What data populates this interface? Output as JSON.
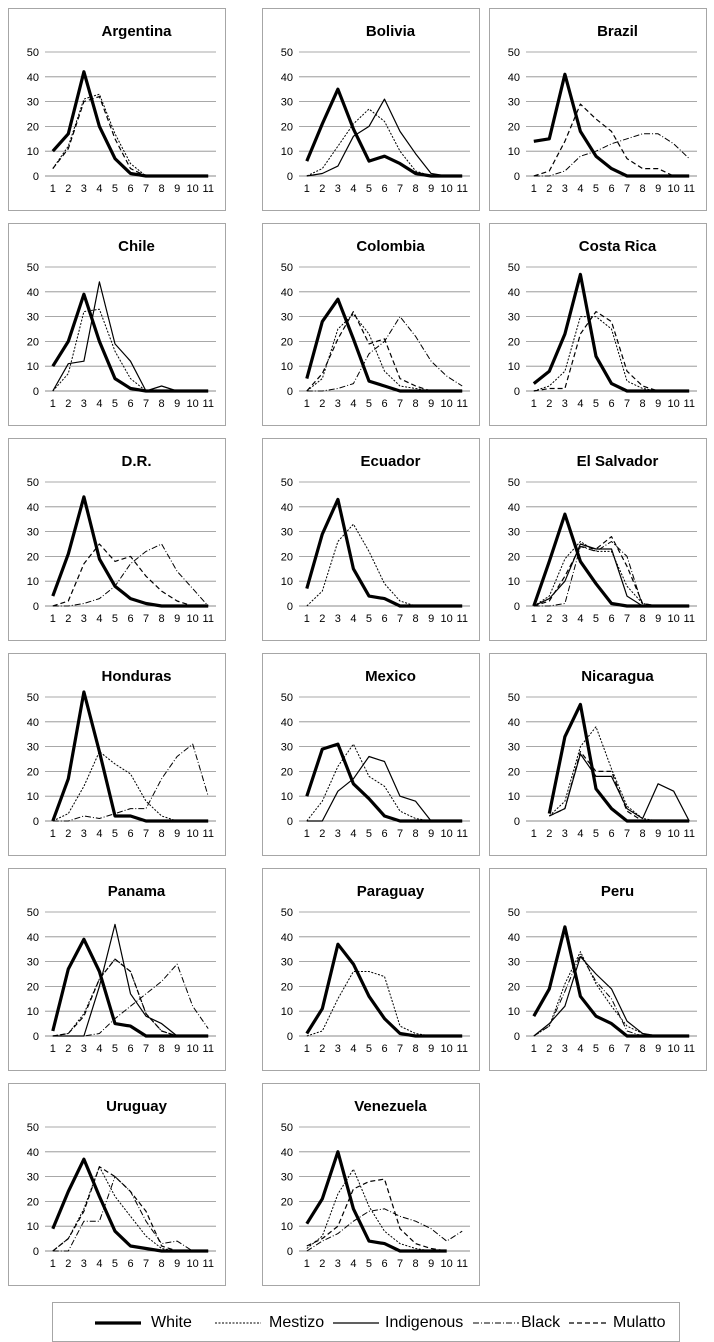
{
  "chart_data": {
    "type": "line",
    "x": [
      1,
      2,
      3,
      4,
      5,
      6,
      7,
      8,
      9,
      10,
      11
    ],
    "ylim": [
      0,
      50
    ],
    "yticks": [
      0,
      10,
      20,
      30,
      40,
      50
    ],
    "grid": true,
    "legend_position": "bottom",
    "legend": [
      {
        "name": "White",
        "style": "thick"
      },
      {
        "name": "Mestizo",
        "style": "dotted"
      },
      {
        "name": "Indigenous",
        "style": "solid"
      },
      {
        "name": "Black",
        "style": "dashdot"
      },
      {
        "name": "Mulatto",
        "style": "dashed"
      }
    ],
    "panels": [
      {
        "title": "Argentina",
        "series": [
          {
            "name": "White",
            "values": [
              10,
              17,
              42,
              20,
              7,
              1,
              0,
              0,
              0,
              0,
              0
            ]
          },
          {
            "name": "Mestizo",
            "values": [
              3,
              12,
              31,
              33,
              17,
              5,
              0,
              0,
              0,
              0,
              0
            ]
          },
          {
            "name": "Mulatto",
            "values": [
              3,
              11,
              30,
              32,
              15,
              3,
              0,
              0,
              0,
              0,
              0
            ]
          }
        ]
      },
      {
        "title": "Bolivia",
        "series": [
          {
            "name": "White",
            "values": [
              6,
              21,
              35,
              19,
              6,
              8,
              5,
              1,
              0,
              0,
              0
            ]
          },
          {
            "name": "Mestizo",
            "values": [
              0,
              3,
              12,
              21,
              27,
              22,
              10,
              2,
              0,
              0,
              0
            ]
          },
          {
            "name": "Indigenous",
            "values": [
              0,
              1,
              4,
              16,
              20,
              31,
              18,
              9,
              1,
              0,
              0
            ]
          }
        ]
      },
      {
        "title": "Brazil",
        "series": [
          {
            "name": "White",
            "values": [
              14,
              15,
              41,
              18,
              8,
              3,
              0,
              0,
              0,
              0,
              0
            ]
          },
          {
            "name": "Black",
            "values": [
              0,
              0,
              2,
              8,
              10,
              13,
              15,
              17,
              17,
              13,
              7
            ]
          },
          {
            "name": "Mulatto",
            "values": [
              0,
              2,
              14,
              29,
              23,
              18,
              7,
              3,
              3,
              0,
              0
            ]
          }
        ]
      },
      {
        "title": "Chile",
        "series": [
          {
            "name": "White",
            "values": [
              10,
              20,
              39,
              20,
              5,
              1,
              0,
              0,
              0,
              0,
              0
            ]
          },
          {
            "name": "Mestizo",
            "values": [
              0,
              7,
              32,
              33,
              16,
              5,
              0,
              0,
              0,
              0,
              0
            ]
          },
          {
            "name": "Indigenous",
            "values": [
              0,
              11,
              12,
              44,
              19,
              12,
              0,
              2,
              0,
              0,
              0
            ]
          }
        ]
      },
      {
        "title": "Colombia",
        "series": [
          {
            "name": "White",
            "values": [
              5,
              28,
              37,
              21,
              4,
              2,
              0,
              0,
              0,
              0,
              0
            ]
          },
          {
            "name": "Mestizo",
            "values": [
              0,
              5,
              25,
              31,
              23,
              8,
              2,
              1,
              0,
              0,
              0
            ]
          },
          {
            "name": "Black",
            "values": [
              0,
              0,
              1,
              3,
              15,
              20,
              30,
              22,
              12,
              6,
              2
            ]
          },
          {
            "name": "Mulatto",
            "values": [
              0,
              7,
              21,
              32,
              19,
              21,
              5,
              2,
              0,
              0,
              0
            ]
          }
        ]
      },
      {
        "title": "Costa Rica",
        "series": [
          {
            "name": "White",
            "values": [
              3,
              8,
              23,
              47,
              14,
              3,
              0,
              0,
              0,
              0,
              0
            ]
          },
          {
            "name": "Mestizo",
            "values": [
              0,
              2,
              8,
              30,
              30,
              25,
              4,
              1,
              0,
              0,
              0
            ]
          },
          {
            "name": "Mulatto",
            "values": [
              0,
              1,
              1,
              23,
              32,
              28,
              8,
              2,
              0,
              0,
              0
            ]
          }
        ]
      },
      {
        "title": "D.R.",
        "series": [
          {
            "name": "White",
            "values": [
              4,
              21,
              44,
              19,
              8,
              3,
              1,
              0,
              0,
              0,
              0
            ]
          },
          {
            "name": "Black",
            "values": [
              0,
              0,
              1,
              3,
              8,
              17,
              22,
              25,
              14,
              7,
              0
            ]
          },
          {
            "name": "Mulatto",
            "values": [
              0,
              2,
              17,
              25,
              18,
              20,
              12,
              6,
              2,
              0,
              0
            ]
          }
        ]
      },
      {
        "title": "Ecuador",
        "series": [
          {
            "name": "White",
            "values": [
              7,
              29,
              43,
              15,
              4,
              3,
              0,
              0,
              0,
              0,
              0
            ]
          },
          {
            "name": "Mestizo",
            "values": [
              0,
              6,
              26,
              33,
              22,
              9,
              2,
              0,
              0,
              0,
              0
            ]
          }
        ]
      },
      {
        "title": "El Salvador",
        "series": [
          {
            "name": "White",
            "values": [
              0,
              18,
              37,
              18,
              9,
              1,
              0,
              0,
              0,
              0,
              0
            ]
          },
          {
            "name": "Mestizo",
            "values": [
              0,
              4,
              19,
              26,
              22,
              22,
              8,
              1,
              0,
              0,
              0
            ]
          },
          {
            "name": "Indigenous",
            "values": [
              0,
              3,
              10,
              25,
              23,
              23,
              4,
              0,
              0,
              0,
              0
            ]
          },
          {
            "name": "Black",
            "values": [
              0,
              0,
              1,
              24,
              22,
              26,
              20,
              0,
              0,
              0,
              0
            ]
          },
          {
            "name": "Mulatto",
            "values": [
              0,
              2,
              12,
              24,
              23,
              28,
              16,
              1,
              0,
              0,
              0
            ]
          }
        ]
      },
      {
        "title": "Honduras",
        "series": [
          {
            "name": "White",
            "values": [
              0,
              17,
              52,
              28,
              2,
              2,
              0,
              0,
              0,
              0,
              0
            ]
          },
          {
            "name": "Mestizo",
            "values": [
              0,
              3,
              14,
              28,
              23,
              19,
              8,
              2,
              0,
              0,
              0
            ]
          },
          {
            "name": "Black",
            "values": [
              0,
              0,
              2,
              1,
              3,
              5,
              5,
              17,
              26,
              31,
              10
            ]
          }
        ]
      },
      {
        "title": "Mexico",
        "series": [
          {
            "name": "White",
            "values": [
              10,
              29,
              31,
              15,
              9,
              2,
              0,
              0,
              0,
              0,
              0
            ]
          },
          {
            "name": "Mestizo",
            "values": [
              0,
              8,
              22,
              31,
              18,
              14,
              4,
              1,
              0,
              0,
              0
            ]
          },
          {
            "name": "Indigenous",
            "values": [
              0,
              0,
              12,
              17,
              26,
              24,
              10,
              8,
              0,
              0,
              0
            ]
          }
        ]
      },
      {
        "title": "Nicaragua",
        "series": [
          {
            "name": "White",
            "values": [
              null,
              3,
              34,
              47,
              13,
              5,
              0,
              0,
              0,
              0,
              0
            ]
          },
          {
            "name": "Mestizo",
            "values": [
              null,
              2,
              8,
              30,
              38,
              21,
              6,
              1,
              0,
              0,
              0
            ]
          },
          {
            "name": "Indigenous",
            "values": [
              null,
              2,
              5,
              27,
              18,
              18,
              5,
              1,
              15,
              12,
              0
            ]
          },
          {
            "name": "Mulatto",
            "values": [
              null,
              2,
              5,
              28,
              20,
              20,
              4,
              0,
              0,
              0,
              0
            ]
          }
        ]
      },
      {
        "title": "Panama",
        "series": [
          {
            "name": "White",
            "values": [
              2,
              27,
              39,
              26,
              5,
              4,
              0,
              0,
              0,
              0,
              0
            ]
          },
          {
            "name": "Mestizo",
            "values": [
              0,
              1,
              9,
              23,
              31,
              26,
              9,
              2,
              0,
              0,
              0
            ]
          },
          {
            "name": "Indigenous",
            "values": [
              0,
              0,
              0,
              20,
              45,
              17,
              8,
              5,
              0,
              0,
              0
            ]
          },
          {
            "name": "Black",
            "values": [
              0,
              0,
              0,
              1,
              7,
              12,
              17,
              22,
              29,
              12,
              3
            ]
          },
          {
            "name": "Mulatto",
            "values": [
              0,
              1,
              8,
              23,
              31,
              26,
              9,
              2,
              0,
              0,
              0
            ]
          }
        ]
      },
      {
        "title": "Paraguay",
        "series": [
          {
            "name": "White",
            "values": [
              1,
              11,
              37,
              29,
              16,
              7,
              1,
              0,
              0,
              0,
              0
            ]
          },
          {
            "name": "Mestizo",
            "values": [
              0,
              2,
              15,
              26,
              26,
              24,
              4,
              1,
              0,
              0,
              0
            ]
          }
        ]
      },
      {
        "title": "Peru",
        "series": [
          {
            "name": "White",
            "values": [
              8,
              19,
              44,
              16,
              8,
              5,
              0,
              0,
              0,
              0,
              0
            ]
          },
          {
            "name": "Mestizo",
            "values": [
              0,
              4,
              21,
              34,
              21,
              12,
              4,
              1,
              0,
              0,
              0
            ]
          },
          {
            "name": "Indigenous",
            "values": [
              0,
              5,
              12,
              32,
              25,
              19,
              6,
              1,
              0,
              0,
              0
            ]
          },
          {
            "name": "Black",
            "values": [
              0,
              4,
              18,
              33,
              22,
              15,
              2,
              0,
              0,
              0,
              0
            ]
          }
        ]
      },
      {
        "title": "Uruguay",
        "series": [
          {
            "name": "White",
            "values": [
              9,
              24,
              37,
              22,
              8,
              2,
              1,
              0,
              0,
              0,
              0
            ]
          },
          {
            "name": "Mestizo",
            "values": [
              0,
              5,
              17,
              34,
              22,
              14,
              6,
              1,
              0,
              0,
              0
            ]
          },
          {
            "name": "Black",
            "values": [
              0,
              0,
              12,
              12,
              30,
              24,
              12,
              3,
              4,
              0,
              0
            ]
          },
          {
            "name": "Mulatto",
            "values": [
              0,
              5,
              16,
              34,
              30,
              24,
              16,
              2,
              0,
              0,
              0
            ]
          }
        ]
      },
      {
        "title": "Venezuela",
        "series": [
          {
            "name": "White",
            "values": [
              11,
              21,
              40,
              17,
              4,
              3,
              0,
              0,
              0,
              0,
              null
            ]
          },
          {
            "name": "Mestizo",
            "values": [
              1,
              6,
              23,
              33,
              18,
              8,
              3,
              1,
              0,
              0,
              null
            ]
          },
          {
            "name": "Black",
            "values": [
              0,
              4,
              7,
              12,
              16,
              17,
              14,
              12,
              9,
              4,
              8
            ]
          },
          {
            "name": "Mulatto",
            "values": [
              2,
              5,
              10,
              25,
              28,
              29,
              9,
              3,
              1,
              0,
              null
            ]
          }
        ]
      }
    ]
  }
}
